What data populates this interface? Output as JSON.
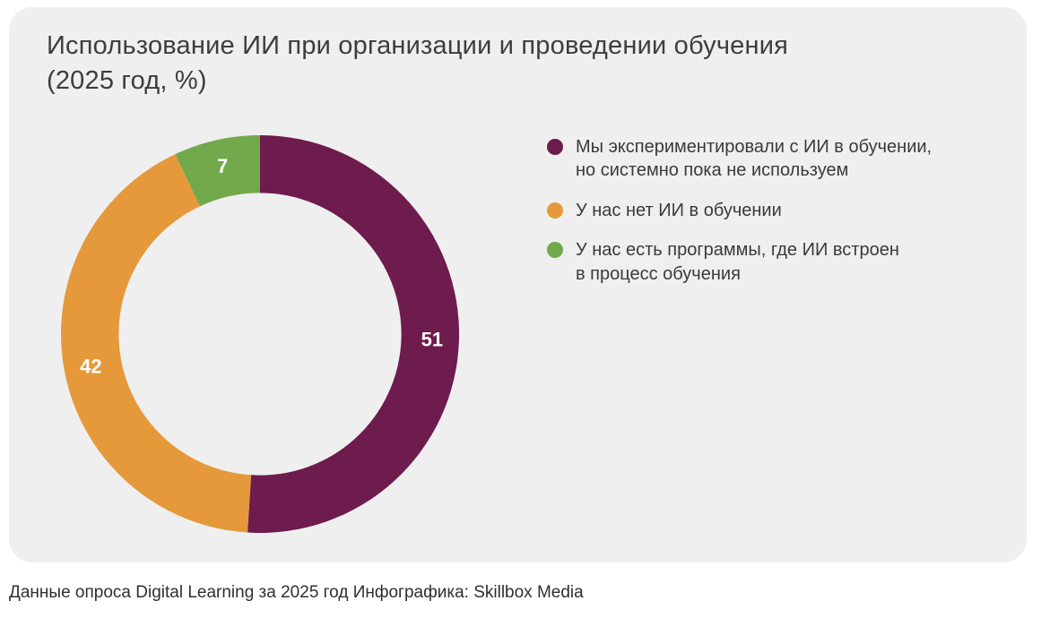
{
  "card": {
    "title": "Использование ИИ при организации и проведении обучения\n(2025 год, %)"
  },
  "chart_data": {
    "type": "pie",
    "subtype": "donut",
    "title": "Использование ИИ при организации и проведении обучения (2025 год, %)",
    "labels": [
      "Мы экспериментировали с ИИ в обучении, но системно пока не используем",
      "У нас нет ИИ в обучении",
      "У нас есть программы, где ИИ встроен в процесс обучения"
    ],
    "values": [
      51,
      42,
      7
    ],
    "colors": [
      "#6e1b4d",
      "#e5993b",
      "#72a94b"
    ],
    "value_label_color": "#ffffff",
    "start_angle_deg": 0,
    "direction": "clockwise",
    "inner_radius_ratio": 0.71,
    "legend_position": "right"
  },
  "legend": {
    "items": [
      {
        "label": "Мы экспериментировали с ИИ в обучении,\nно системно пока не используем",
        "color": "#6e1b4d"
      },
      {
        "label": "У нас нет ИИ в обучении",
        "color": "#e5993b"
      },
      {
        "label": "У нас есть программы, где ИИ встроен\nв процесс обучения",
        "color": "#72a94b"
      }
    ]
  },
  "footer": {
    "text": "Данные опроса Digital Learning за 2025 год Инфографика: Skillbox Media"
  },
  "colors": {
    "page_background": "#ffffff",
    "card_background": "#efefef",
    "title_text": "#3d3d3d",
    "legend_text": "#3a3a3a",
    "footer_text": "#2f2f2f"
  }
}
